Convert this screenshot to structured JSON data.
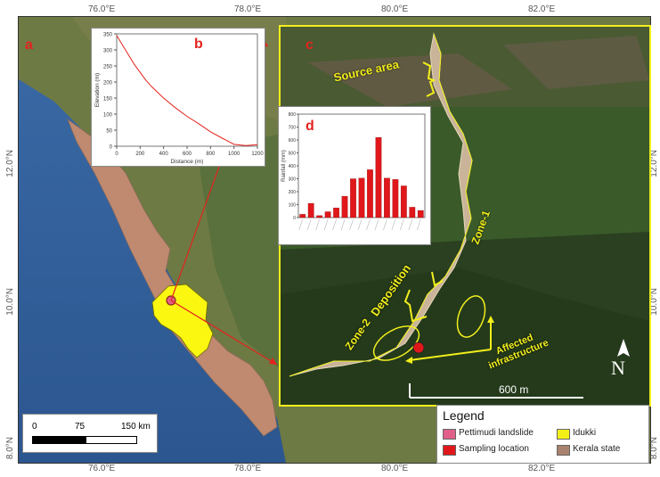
{
  "axes": {
    "top_ticks": [
      "76.0°E",
      "78.0°E",
      "80.0°E",
      "82.0°E"
    ],
    "bottom_ticks": [
      "76.0°E",
      "78.0°E",
      "80.0°E",
      "82.0°E"
    ],
    "left_ticks": [
      "12.0°N",
      "10.0°N",
      "8.0°N"
    ],
    "right_ticks": [
      "12.0°N",
      "10.0°N",
      "8.0°N"
    ]
  },
  "panels": {
    "a": "a",
    "b": "b",
    "c": "c",
    "d": "d"
  },
  "labels": {
    "source_area": "Source area",
    "deposition": "Deposition",
    "zone1": "Zone-1",
    "zone2": "Zone-2",
    "affected": "Affected infrastructure",
    "scale_600": "600 m",
    "north": "N"
  },
  "scalebar": {
    "ticks": [
      "0",
      "75",
      "150 km"
    ]
  },
  "legend": {
    "title": "Legend",
    "items": [
      {
        "label": "Pettimudi landslide",
        "color": "#e0608a"
      },
      {
        "label": "Idukki",
        "color": "#f3f018"
      },
      {
        "label": "Sampling location",
        "color": "#e0181b"
      },
      {
        "label": "Kerala state",
        "color": "#a9826f"
      }
    ]
  },
  "colors": {
    "kerala": "#c08a70",
    "idukki": "#fbf711",
    "accent": "#e3231d",
    "highlight": "#f2ef1b"
  },
  "chart_data": [
    {
      "type": "line",
      "xlabel": "Distance (m)",
      "ylabel": "Elevation (m)",
      "xlim": [
        0,
        1200
      ],
      "ylim": [
        0,
        350
      ],
      "xticks": [
        0,
        200,
        400,
        600,
        800,
        1000,
        1200
      ],
      "yticks": [
        0,
        50,
        100,
        150,
        200,
        250,
        300,
        350
      ],
      "x": [
        0,
        50,
        100,
        150,
        200,
        250,
        300,
        400,
        500,
        600,
        700,
        800,
        900,
        1000,
        1100,
        1200
      ],
      "values": [
        345,
        315,
        285,
        255,
        230,
        205,
        185,
        150,
        120,
        93,
        70,
        45,
        25,
        6,
        2,
        5
      ]
    },
    {
      "type": "bar",
      "ylabel": "Rainfall (mm)",
      "ylim": [
        0,
        800
      ],
      "yticks": [
        0,
        100,
        200,
        300,
        400,
        500,
        600,
        700,
        800
      ],
      "values": [
        25,
        110,
        15,
        45,
        75,
        165,
        300,
        305,
        370,
        620,
        305,
        295,
        245,
        80,
        55
      ]
    }
  ]
}
